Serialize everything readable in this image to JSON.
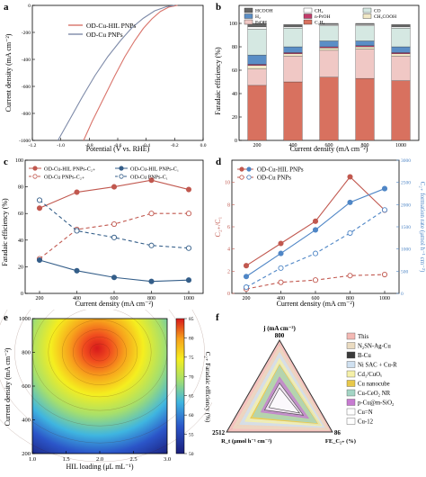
{
  "panels": {
    "a": {
      "label": "a",
      "chart_data": {
        "type": "line",
        "xlabel": "Potential (V vs. RHE)",
        "ylabel": "Current density (mA cm⁻²)",
        "xlim": [
          -1.2,
          0.0
        ],
        "ylim": [
          -1000,
          0
        ],
        "xticks": [
          "-1.2",
          "-1.0",
          "-0.8",
          "-0.6",
          "-0.4",
          "-0.2",
          "0.0"
        ],
        "yticks": [
          "0",
          "-200",
          "-400",
          "-600",
          "-800",
          "-1000"
        ],
        "legend_position": "top-left",
        "series": [
          {
            "name": "OD-Cu-HIL PNPs",
            "color": "#d9736a",
            "x": [
              -0.84,
              -0.78,
              -0.7,
              -0.62,
              -0.55,
              -0.48,
              -0.42,
              -0.36,
              -0.3,
              -0.24,
              -0.18
            ],
            "y": [
              -1000,
              -860,
              -690,
              -520,
              -380,
              -260,
              -170,
              -100,
              -45,
              -12,
              0
            ]
          },
          {
            "name": "OD-Cu PNPs",
            "color": "#7d8aa8",
            "x": [
              -1.02,
              -0.94,
              -0.85,
              -0.76,
              -0.67,
              -0.58,
              -0.5,
              -0.42,
              -0.34,
              -0.26,
              -0.2
            ],
            "y": [
              -1000,
              -850,
              -680,
              -520,
              -380,
              -260,
              -165,
              -95,
              -40,
              -10,
              0
            ]
          }
        ]
      }
    },
    "b": {
      "label": "b",
      "chart_data": {
        "type": "bar",
        "xlabel": "Current density (mA cm⁻²)",
        "ylabel": "Faradaic efficiency (%)",
        "ylim": [
          0,
          100
        ],
        "yticks": [
          "0",
          "20",
          "40",
          "60",
          "80",
          "100"
        ],
        "categories": [
          "200",
          "400",
          "600",
          "800",
          "1000"
        ],
        "legend_position": "top",
        "series": [
          {
            "name": "C₂H₄",
            "color": "#d8715f",
            "values": [
              47,
              50,
              54,
              53,
              51
            ]
          },
          {
            "name": "EtOH",
            "color": "#f0c8c5",
            "values": [
              14,
              22,
              23,
              25,
              21
            ]
          },
          {
            "name": "CH₃COOH",
            "color": "#f1e8c6",
            "values": [
              3,
              2,
              2,
              2,
              2
            ]
          },
          {
            "name": "n-PrOH",
            "color": "#c23b6a",
            "values": [
              1,
              1,
              1,
              1,
              1
            ]
          },
          {
            "name": "H₂",
            "color": "#5a8ec6",
            "values": [
              8,
              5,
              5,
              4,
              5
            ]
          },
          {
            "name": "CO",
            "color": "#d5e8e2",
            "values": [
              22,
              16,
              13,
              13,
              16
            ]
          },
          {
            "name": "CH₄",
            "color": "#ffffff",
            "values": [
              2,
              1,
              1,
              1,
              1
            ]
          },
          {
            "name": "HCOOH",
            "color": "#666666",
            "values": [
              3,
              2,
              1,
              1,
              2
            ]
          }
        ]
      }
    },
    "c": {
      "label": "c",
      "chart_data": {
        "type": "line",
        "xlabel": "Current density (mA cm⁻²)",
        "ylabel": "Faradaic efficiency (%)",
        "x": [
          200,
          400,
          600,
          800,
          1000
        ],
        "xticks": [
          "200",
          "400",
          "600",
          "800",
          "1000"
        ],
        "ylim": [
          0,
          100
        ],
        "yticks": [
          "0",
          "20",
          "40",
          "60",
          "80",
          "100"
        ],
        "legend_position": "top",
        "series": [
          {
            "name": "OD-Cu-HIL PNPs-C₂₊",
            "color": "#c1584f",
            "dashed": false,
            "values": [
              64,
              76,
              80,
              85,
              78
            ]
          },
          {
            "name": "OD-Cu PNPs-C₂₊",
            "color": "#c1584f",
            "dashed": true,
            "values": [
              26,
              48,
              52,
              60,
              60
            ]
          },
          {
            "name": "OD-Cu-HIL PNPs-C₁",
            "color": "#345e89",
            "dashed": false,
            "values": [
              25,
              17,
              12,
              9,
              10
            ]
          },
          {
            "name": "OD-Cu PNPs-C₁",
            "color": "#345e89",
            "dashed": true,
            "values": [
              70,
              47,
              42,
              36,
              34
            ]
          }
        ]
      }
    },
    "d": {
      "label": "d",
      "chart_data": {
        "type": "line",
        "xlabel": "Current density (mA cm⁻²)",
        "ylabel": "C₂₊/C₁",
        "ylabel2": "C₂₊ formation rate (μmol h⁻¹ cm⁻²)",
        "x": [
          200,
          400,
          600,
          800,
          1000
        ],
        "xticks": [
          "200",
          "400",
          "600",
          "800",
          "1000"
        ],
        "ylim": [
          0,
          12
        ],
        "yticks": [
          "0",
          "2",
          "4",
          "6",
          "8",
          "10"
        ],
        "ylim2": [
          0,
          3000
        ],
        "yticks2": [
          "0",
          "500",
          "1000",
          "1500",
          "2000",
          "2500",
          "3000"
        ],
        "legend_position": "top-left",
        "series": [
          {
            "name": "OD-Cu-HIL PNPs",
            "metric": "ratio",
            "color": "#c1584f",
            "dashed": false,
            "values": [
              2.5,
              4.5,
              6.5,
              10.5,
              7.5
            ]
          },
          {
            "name": "OD-Cu PNPs",
            "metric": "ratio",
            "color": "#c1584f",
            "dashed": true,
            "values": [
              0.4,
              1.0,
              1.2,
              1.6,
              1.7
            ]
          },
          {
            "name": "OD-Cu-HIL PNPs",
            "metric": "rate",
            "color": "#4f86c6",
            "dashed": false,
            "values": [
              380,
              900,
              1430,
              2050,
              2360
            ]
          },
          {
            "name": "OD-Cu PNPs",
            "metric": "rate",
            "color": "#4f86c6",
            "dashed": true,
            "values": [
              140,
              570,
              900,
              1360,
              1880
            ]
          }
        ]
      }
    },
    "e": {
      "label": "e",
      "chart_data": {
        "type": "heatmap",
        "xlabel": "HIL loading (μL mL⁻¹)",
        "ylabel": "Current density (mA cm⁻²)",
        "zlabel": "C₂₊ Faradaic efficiency (%)",
        "xlim": [
          1.0,
          3.0
        ],
        "xticks": [
          "1.0",
          "1.5",
          "2.0",
          "2.5",
          "3.0"
        ],
        "ylim": [
          200,
          1000
        ],
        "yticks": [
          "200",
          "400",
          "600",
          "800",
          "1000"
        ],
        "zlim": [
          50,
          85
        ],
        "zticks": [
          "50",
          "55",
          "60",
          "65",
          "70",
          "75",
          "80",
          "85"
        ],
        "peak": {
          "x": 2.0,
          "y": 800,
          "z": 85
        }
      }
    },
    "f": {
      "label": "f",
      "chart_data": {
        "type": "radar",
        "axes": [
          {
            "label": "j (mA cm⁻²)",
            "max_label": "800"
          },
          {
            "label": "FE_C₂₊ (%)",
            "max_label": "86"
          },
          {
            "label": "R_t (μmol h⁻¹ cm⁻²)",
            "max_label": "2512"
          }
        ],
        "legend_position": "right",
        "series": [
          {
            "name": "This",
            "color": "#f3b9b4",
            "values": [
              1.0,
              1.0,
              1.0
            ]
          },
          {
            "name": "N₂SN-Ag-Cu",
            "color": "#eadbc1",
            "values": [
              0.9,
              0.93,
              0.88
            ]
          },
          {
            "name": "B-Cu",
            "color": "#3a3a3a",
            "values": [
              0.62,
              0.78,
              0.52
            ]
          },
          {
            "name": "Ni SAC + Cu-R",
            "color": "#cfe0f0",
            "values": [
              0.8,
              0.85,
              0.75
            ]
          },
          {
            "name": "Cd₁/CuOₓ",
            "color": "#f5f0a8",
            "values": [
              0.7,
              0.8,
              0.65
            ]
          },
          {
            "name": "Cu nanocube",
            "color": "#e8c84a",
            "values": [
              0.6,
              0.72,
              0.55
            ]
          },
          {
            "name": "Cu-CeO₂ NR",
            "color": "#a4d5c5",
            "values": [
              0.58,
              0.7,
              0.5
            ]
          },
          {
            "name": "p-Cu@m-SiO₂",
            "color": "#c77bd1",
            "values": [
              0.4,
              0.55,
              0.35
            ]
          },
          {
            "name": "Cu=N",
            "color": "#ffffff",
            "values": [
              0.3,
              0.45,
              0.28
            ]
          },
          {
            "name": "Cu-12",
            "color": "#ffffff",
            "values": [
              0.22,
              0.38,
              0.2
            ]
          }
        ]
      }
    }
  }
}
